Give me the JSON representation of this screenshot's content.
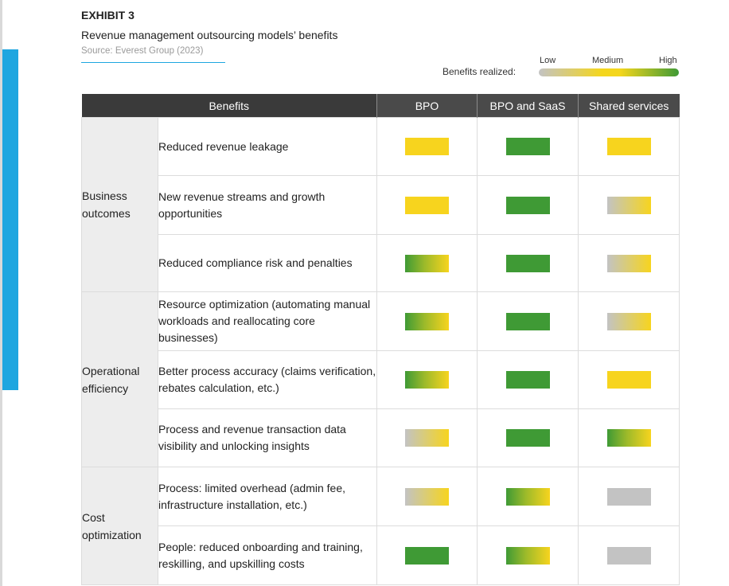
{
  "exhibit": "EXHIBIT 3",
  "subtitle": "Revenue management outsourcing models’ benefits",
  "source": "Source: Everest Group (2023)",
  "legend": {
    "label": "Benefits realized:",
    "low": "Low",
    "medium": "Medium",
    "high": "High",
    "colors": {
      "low": "#c3c3c3",
      "medium": "#f7d41e",
      "high": "#3f9a35"
    }
  },
  "columns": [
    "Benefits",
    "BPO",
    "BPO and SaaS",
    "Shared services"
  ],
  "groups": [
    {
      "category": "Business outcomes",
      "rows": [
        {
          "benefit": "Reduced revenue leakage",
          "ratings": [
            "medium",
            "high",
            "medium"
          ]
        },
        {
          "benefit": "New revenue streams and growth opportunities",
          "ratings": [
            "medium",
            "high",
            "low-medium"
          ]
        },
        {
          "benefit": "Reduced compliance risk and penalties",
          "ratings": [
            "medium-high",
            "high",
            "low-medium"
          ]
        }
      ]
    },
    {
      "category": "Operational efficiency",
      "rows": [
        {
          "benefit": "Resource optimization (automating manual workloads and reallocating core businesses)",
          "ratings": [
            "medium-high",
            "high",
            "low-medium"
          ]
        },
        {
          "benefit": "Better process accuracy (claims verification, rebates calculation, etc.)",
          "ratings": [
            "medium-high",
            "high",
            "medium"
          ]
        },
        {
          "benefit": "Process and revenue transaction data visibility and unlocking insights",
          "ratings": [
            "low-medium",
            "high",
            "medium-high"
          ]
        }
      ]
    },
    {
      "category": "Cost optimization",
      "rows": [
        {
          "benefit": "Process: limited overhead (admin fee, infrastructure installation, etc.)",
          "ratings": [
            "low-medium",
            "medium-high",
            "low"
          ]
        },
        {
          "benefit": "People: reduced onboarding and training, reskilling, and upskilling costs",
          "ratings": [
            "high",
            "medium-high",
            "low"
          ]
        }
      ]
    }
  ]
}
